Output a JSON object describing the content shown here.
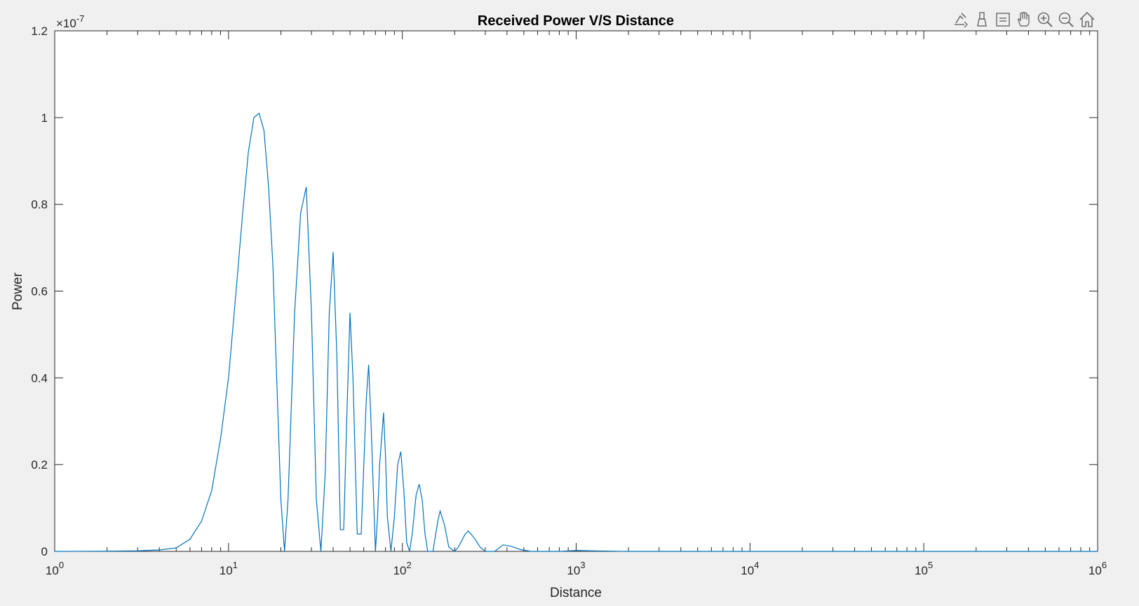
{
  "toolbar": {
    "icons": [
      "export-icon",
      "brush-icon",
      "data-tips-icon",
      "pan-icon",
      "zoom-in-icon",
      "zoom-out-icon",
      "home-icon"
    ]
  },
  "chart_data": {
    "type": "line",
    "title": "Received Power V/S Distance",
    "xlabel": "Distance",
    "ylabel": "Power",
    "xscale": "log",
    "xlim": [
      1,
      1000000
    ],
    "ylim": [
      0,
      1.2e-07
    ],
    "y_exponent_label": {
      "base": "×10",
      "exp": "-7"
    },
    "x_ticks": [
      {
        "base": "10",
        "exp": "0"
      },
      {
        "base": "10",
        "exp": "1"
      },
      {
        "base": "10",
        "exp": "2"
      },
      {
        "base": "10",
        "exp": "3"
      },
      {
        "base": "10",
        "exp": "4"
      },
      {
        "base": "10",
        "exp": "5"
      },
      {
        "base": "10",
        "exp": "6"
      }
    ],
    "y_ticks": [
      "0",
      "0.2",
      "0.4",
      "0.6",
      "0.8",
      "1",
      "1.2"
    ],
    "grid": false,
    "line_color": "#0072bd",
    "series": [
      {
        "x": [
          1,
          2,
          3,
          4,
          5,
          6,
          7,
          8,
          9,
          10,
          11,
          12,
          13,
          14,
          15,
          16,
          17,
          18,
          19,
          20,
          21,
          22,
          24,
          26,
          28,
          30,
          32,
          34,
          36,
          38,
          40,
          42,
          44,
          46,
          48,
          50,
          52,
          55,
          58,
          62,
          64,
          66,
          70,
          72,
          74,
          78,
          80,
          82,
          86,
          90,
          94,
          98,
          102,
          106,
          110,
          114,
          120,
          125,
          130,
          135,
          140,
          150,
          160,
          165,
          175,
          185,
          200,
          210,
          230,
          240,
          260,
          280,
          300,
          340,
          380,
          420,
          480,
          550,
          650,
          800,
          1000,
          1300,
          2000,
          5000,
          10000,
          100000,
          1000000
        ],
        "y": [
          0.0,
          4e-11,
          1.2e-10,
          3.2e-10,
          8e-10,
          2.8e-09,
          7e-09,
          1.4e-08,
          2.6e-08,
          4e-08,
          5.9e-08,
          7.7e-08,
          9.2e-08,
          1e-07,
          1.01e-07,
          9.7e-08,
          8.4e-08,
          6.6e-08,
          3.8e-08,
          1.2e-08,
          0.0,
          1.2e-08,
          5.5e-08,
          7.8e-08,
          8.4e-08,
          5.5e-08,
          1.2e-08,
          0.0,
          1.8e-08,
          5.5e-08,
          6.9e-08,
          4.5e-08,
          5e-09,
          5e-09,
          3.2e-08,
          5.5e-08,
          4e-08,
          4e-09,
          4e-09,
          3.5e-08,
          4.3e-08,
          3e-08,
          0.0,
          8e-09,
          2e-08,
          3.2e-08,
          2.2e-08,
          8e-09,
          0.0,
          8e-09,
          2e-08,
          2.3e-08,
          1.4e-08,
          2e-09,
          0.0,
          4e-09,
          1.3e-08,
          1.55e-08,
          1.2e-08,
          4e-09,
          0.0,
          0.0,
          7e-09,
          9.3e-09,
          6e-09,
          1e-09,
          0.0,
          1e-09,
          4e-09,
          4.7e-09,
          3e-09,
          1e-09,
          0.0,
          0.0,
          1.5e-09,
          1.2e-09,
          4e-10,
          0.0,
          0.0,
          0.0,
          2e-10,
          1e-10,
          0.0,
          0.0,
          0.0,
          0.0,
          0.0
        ]
      }
    ]
  }
}
